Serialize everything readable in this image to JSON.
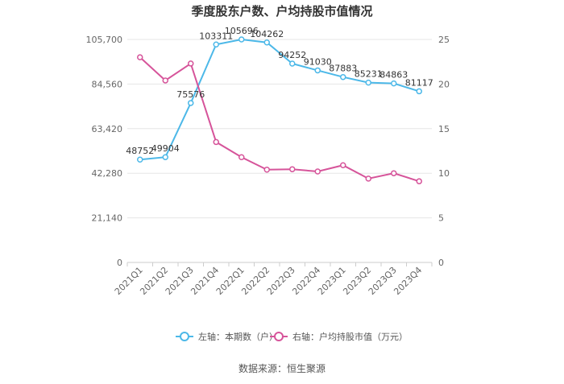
{
  "chart_data": {
    "type": "line",
    "title": "季度股东户数、户均持股市值情况",
    "categories": [
      "2021Q1",
      "2021Q2",
      "2021Q3",
      "2021Q4",
      "2022Q1",
      "2022Q2",
      "2022Q3",
      "2022Q4",
      "2023Q1",
      "2023Q2",
      "2023Q3",
      "2023Q4"
    ],
    "left_axis": {
      "ticks": [
        "0",
        "21,140",
        "42,280",
        "63,420",
        "84,560",
        "105,700"
      ],
      "min": 0,
      "max": 105700
    },
    "right_axis": {
      "ticks": [
        "0",
        "5",
        "10",
        "15",
        "20",
        "25"
      ],
      "min": 0,
      "max": 25
    },
    "series": [
      {
        "name": "左轴：本期数（户）",
        "axis": "left",
        "color": "#4cb8e8",
        "values": [
          48752,
          49904,
          75576,
          103311,
          105696,
          104262,
          94252,
          91030,
          87883,
          85231,
          84863,
          81117
        ],
        "labels": [
          "48752",
          "49904",
          "75576",
          "103311",
          "105696",
          "104262",
          "94252",
          "91030",
          "87883",
          "85231",
          "84863",
          "81117"
        ]
      },
      {
        "name": "右轴：户均持股市值（万元）",
        "axis": "right",
        "color": "#d6549a",
        "values": [
          23.0,
          20.4,
          22.3,
          13.5,
          11.8,
          10.4,
          10.45,
          10.2,
          10.9,
          9.4,
          10.0,
          9.1
        ]
      }
    ],
    "grid": true,
    "legend_position": "bottom"
  },
  "source": "数据来源：恒生聚源"
}
